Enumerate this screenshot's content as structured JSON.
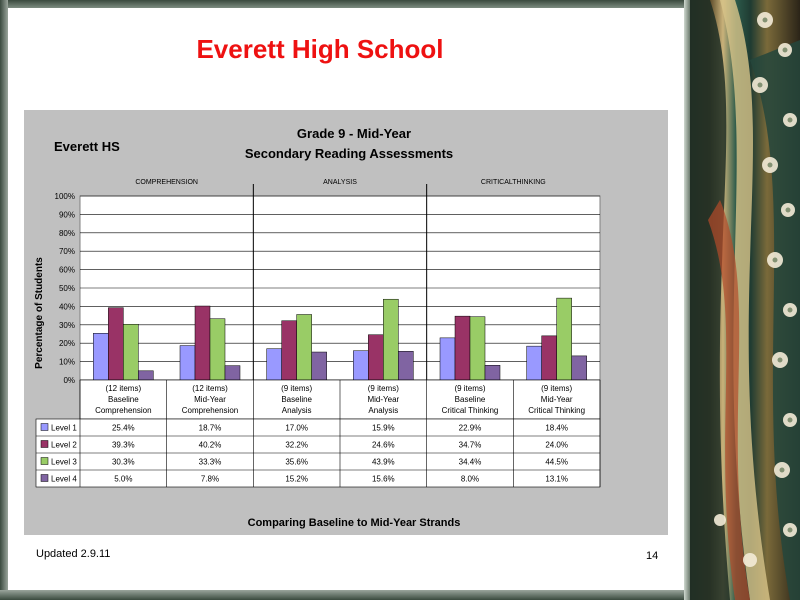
{
  "slide": {
    "title": "Everett High School",
    "updated": "Updated  2.9.11",
    "page_number": "14"
  },
  "chart_data": {
    "type": "bar",
    "corner_label": "Everett HS",
    "title_line1": "Grade 9 - Mid-Year",
    "title_line2": "Secondary Reading Assessments",
    "ylabel": "Percentage of Students",
    "xlabel": "Comparing Baseline to Mid-Year Strands",
    "ylim": [
      0,
      100
    ],
    "yticks": [
      "0%",
      "10%",
      "20%",
      "30%",
      "40%",
      "50%",
      "60%",
      "70%",
      "80%",
      "90%",
      "100%"
    ],
    "grid": true,
    "legend": "data-table",
    "sections": [
      "COMPREHENSION",
      "ANALYSIS",
      "CRITICALTHINKING"
    ],
    "categories": [
      [
        "(12 items)",
        "Baseline",
        "Comprehension"
      ],
      [
        "(12 items)",
        "Mid-Year",
        "Comprehension"
      ],
      [
        "(9 items)",
        "Baseline",
        "Analysis"
      ],
      [
        "(9 items)",
        "Mid-Year",
        "Analysis"
      ],
      [
        "(9 items)",
        "Baseline",
        "Critical Thinking"
      ],
      [
        "(9 items)",
        "Mid-Year",
        "Critical Thinking"
      ]
    ],
    "series": [
      {
        "name": "Level 1",
        "color": "#9999ff",
        "values": [
          25.4,
          18.7,
          17.0,
          15.9,
          22.9,
          18.4
        ],
        "labels": [
          "25.4%",
          "18.7%",
          "17.0%",
          "15.9%",
          "22.9%",
          "18.4%"
        ]
      },
      {
        "name": "Level 2",
        "color": "#993366",
        "values": [
          39.3,
          40.2,
          32.2,
          24.6,
          34.7,
          24.0
        ],
        "labels": [
          "39.3%",
          "40.2%",
          "32.2%",
          "24.6%",
          "34.7%",
          "24.0%"
        ]
      },
      {
        "name": "Level 3",
        "color": "#99cc66",
        "values": [
          30.3,
          33.3,
          35.6,
          43.9,
          34.4,
          44.5
        ],
        "labels": [
          "30.3%",
          "33.3%",
          "35.6%",
          "43.9%",
          "34.4%",
          "44.5%"
        ]
      },
      {
        "name": "Level 4",
        "color": "#8064a2",
        "values": [
          5.0,
          7.8,
          15.2,
          15.6,
          8.0,
          13.1
        ],
        "labels": [
          "5.0%",
          "7.8%",
          "15.2%",
          "15.6%",
          "8.0%",
          "13.1%"
        ]
      }
    ]
  }
}
